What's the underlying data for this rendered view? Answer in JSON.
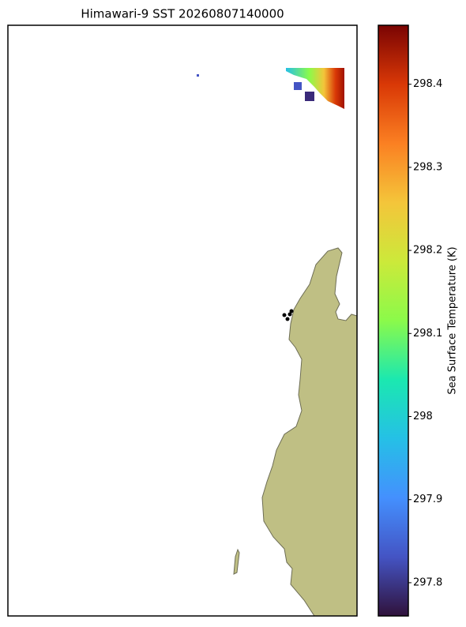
{
  "title": "Himawari-9 SST 20260807140000",
  "colorbar": {
    "label": "Sea Surface Temperature (K)",
    "lim": [
      297.76,
      298.471
    ],
    "ticks": [
      297.8,
      297.9,
      298.0,
      298.1,
      298.2,
      298.3,
      298.4
    ]
  }
}
